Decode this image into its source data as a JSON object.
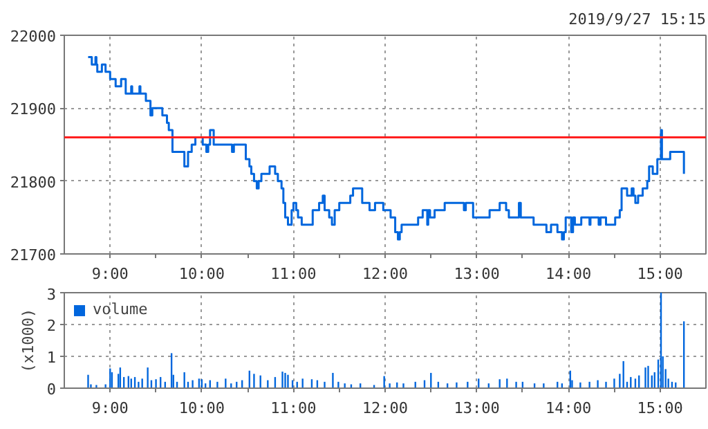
{
  "chart_data": [
    {
      "type": "step",
      "subtitle": "2019/9/27 15:15",
      "xlim": [
        8.5,
        15.5
      ],
      "xticks": [
        {
          "value": 9,
          "label": "9:00"
        },
        {
          "value": 9.5,
          "label": null
        },
        {
          "value": 10,
          "label": "10:00"
        },
        {
          "value": 10.5,
          "label": null
        },
        {
          "value": 11,
          "label": "11:00"
        },
        {
          "value": 11.5,
          "label": null
        },
        {
          "value": 12,
          "label": "12:00"
        },
        {
          "value": 12.5,
          "label": null
        },
        {
          "value": 13,
          "label": "13:00"
        },
        {
          "value": 13.5,
          "label": null
        },
        {
          "value": 14,
          "label": "14:00"
        },
        {
          "value": 14.5,
          "label": null
        },
        {
          "value": 15,
          "label": "15:00"
        }
      ],
      "ylim": [
        21700,
        22000
      ],
      "yticks": [
        21700,
        21800,
        21900,
        22000
      ],
      "grid": true,
      "line_style": "solid",
      "ref_lines": [
        {
          "axis": "y",
          "value": 21860,
          "label": null,
          "color": "#ff2020"
        }
      ],
      "series": [
        {
          "color": "#0066dd",
          "x": [
            8.76,
            8.8,
            8.84,
            8.85,
            8.86,
            8.91,
            8.95,
            9.0,
            9.06,
            9.12,
            9.17,
            9.23,
            9.24,
            9.32,
            9.33,
            9.39,
            9.44,
            9.46,
            9.57,
            9.62,
            9.64,
            9.68,
            9.81,
            9.85,
            9.89,
            9.93,
            10.01,
            10.05,
            10.07,
            10.09,
            10.13,
            10.33,
            10.35,
            10.48,
            10.52,
            10.54,
            10.57,
            10.6,
            10.62,
            10.65,
            10.74,
            10.8,
            10.83,
            10.87,
            10.89,
            10.91,
            10.94,
            10.98,
            11.0,
            11.03,
            11.05,
            11.09,
            11.21,
            11.28,
            11.32,
            11.34,
            11.39,
            11.42,
            11.45,
            11.5,
            11.62,
            11.65,
            11.75,
            11.83,
            11.89,
            11.98,
            12.06,
            12.11,
            12.14,
            12.16,
            12.18,
            12.36,
            12.41,
            12.46,
            12.47,
            12.49,
            12.54,
            12.65,
            12.86,
            12.88,
            12.96,
            13.14,
            13.25,
            13.32,
            13.35,
            13.46,
            13.48,
            13.62,
            13.76,
            13.81,
            13.88,
            13.93,
            13.95,
            13.97,
            14.03,
            14.05,
            14.07,
            14.14,
            14.23,
            14.24,
            14.33,
            14.35,
            14.41,
            14.51,
            14.56,
            14.58,
            14.64,
            14.69,
            14.71,
            14.73,
            14.76,
            14.81,
            14.86,
            14.88,
            14.92,
            14.97,
            15.01,
            15.02,
            15.11,
            15.26
          ],
          "values": [
            21970,
            21960,
            21970,
            21960,
            21950,
            21960,
            21950,
            21940,
            21930,
            21940,
            21920,
            21930,
            21920,
            21930,
            21920,
            21910,
            21890,
            21900,
            21890,
            21880,
            21870,
            21840,
            21820,
            21840,
            21850,
            21860,
            21850,
            21840,
            21850,
            21870,
            21850,
            21840,
            21850,
            21830,
            21820,
            21810,
            21800,
            21790,
            21800,
            21810,
            21820,
            21810,
            21800,
            21790,
            21770,
            21750,
            21740,
            21760,
            21770,
            21760,
            21750,
            21740,
            21760,
            21770,
            21780,
            21760,
            21750,
            21740,
            21760,
            21770,
            21780,
            21790,
            21770,
            21760,
            21770,
            21760,
            21750,
            21730,
            21720,
            21730,
            21740,
            21750,
            21760,
            21740,
            21760,
            21750,
            21760,
            21770,
            21760,
            21770,
            21750,
            21760,
            21770,
            21760,
            21750,
            21770,
            21750,
            21740,
            21730,
            21740,
            21730,
            21720,
            21730,
            21750,
            21730,
            21750,
            21740,
            21750,
            21740,
            21750,
            21740,
            21750,
            21740,
            21750,
            21760,
            21790,
            21780,
            21790,
            21780,
            21770,
            21780,
            21790,
            21800,
            21820,
            21810,
            21830,
            21870,
            21830,
            21840,
            21810
          ]
        }
      ]
    },
    {
      "type": "bar",
      "ylabel": "(x1000)",
      "xlim": [
        8.5,
        15.5
      ],
      "xticks": [
        {
          "value": 9,
          "label": "9:00"
        },
        {
          "value": 9.5,
          "label": null
        },
        {
          "value": 10,
          "label": "10:00"
        },
        {
          "value": 10.5,
          "label": null
        },
        {
          "value": 11,
          "label": "11:00"
        },
        {
          "value": 11.5,
          "label": null
        },
        {
          "value": 12,
          "label": "12:00"
        },
        {
          "value": 12.5,
          "label": null
        },
        {
          "value": 13,
          "label": "13:00"
        },
        {
          "value": 13.5,
          "label": null
        },
        {
          "value": 14,
          "label": "14:00"
        },
        {
          "value": 14.5,
          "label": null
        },
        {
          "value": 15,
          "label": "15:00"
        }
      ],
      "ylim": [
        0,
        3
      ],
      "yticks": [
        0,
        1,
        2,
        3
      ],
      "grid": true,
      "legend": "top left",
      "series": [
        {
          "name": "volume",
          "color": "#0066dd",
          "x": [
            8.76,
            8.79,
            8.85,
            8.95,
            9.0,
            9.02,
            9.09,
            9.11,
            9.15,
            9.2,
            9.23,
            9.27,
            9.31,
            9.35,
            9.41,
            9.45,
            9.5,
            9.55,
            9.6,
            9.67,
            9.69,
            9.73,
            9.81,
            9.85,
            9.9,
            9.97,
            10.0,
            10.04,
            10.09,
            10.17,
            10.26,
            10.32,
            10.38,
            10.44,
            10.52,
            10.57,
            10.64,
            10.72,
            10.8,
            10.88,
            10.91,
            10.94,
            10.99,
            11.04,
            11.1,
            11.2,
            11.26,
            11.34,
            11.43,
            11.49,
            11.56,
            11.63,
            11.73,
            11.88,
            11.99,
            12.05,
            12.13,
            12.2,
            12.33,
            12.43,
            12.5,
            12.58,
            12.68,
            12.78,
            12.9,
            13.02,
            13.13,
            13.25,
            13.33,
            13.43,
            13.5,
            13.63,
            13.73,
            13.88,
            13.93,
            14.02,
            14.04,
            14.13,
            14.23,
            14.32,
            14.41,
            14.5,
            14.56,
            14.6,
            14.64,
            14.68,
            14.73,
            14.77,
            14.84,
            14.87,
            14.91,
            14.94,
            14.98,
            15.01,
            15.03,
            15.06,
            15.09,
            15.13,
            15.17,
            15.26
          ],
          "values": [
            0.42,
            0.12,
            0.1,
            0.12,
            0.62,
            0.5,
            0.45,
            0.65,
            0.35,
            0.38,
            0.3,
            0.35,
            0.2,
            0.3,
            0.65,
            0.25,
            0.28,
            0.35,
            0.2,
            1.1,
            0.42,
            0.2,
            0.5,
            0.2,
            0.25,
            0.3,
            0.28,
            0.15,
            0.25,
            0.2,
            0.3,
            0.15,
            0.2,
            0.25,
            0.55,
            0.45,
            0.4,
            0.25,
            0.35,
            0.52,
            0.48,
            0.42,
            0.25,
            0.2,
            0.3,
            0.28,
            0.25,
            0.2,
            0.48,
            0.2,
            0.15,
            0.12,
            0.15,
            0.1,
            0.38,
            0.15,
            0.18,
            0.15,
            0.2,
            0.25,
            0.48,
            0.2,
            0.15,
            0.18,
            0.2,
            0.3,
            0.15,
            0.28,
            0.3,
            0.2,
            0.2,
            0.15,
            0.15,
            0.2,
            0.15,
            0.55,
            0.25,
            0.18,
            0.2,
            0.25,
            0.2,
            0.3,
            0.45,
            0.85,
            0.2,
            0.35,
            0.3,
            0.4,
            0.65,
            0.7,
            0.4,
            0.5,
            0.9,
            3,
            1.0,
            0.6,
            0.3,
            0.2,
            0.18,
            2.1
          ]
        }
      ]
    }
  ]
}
